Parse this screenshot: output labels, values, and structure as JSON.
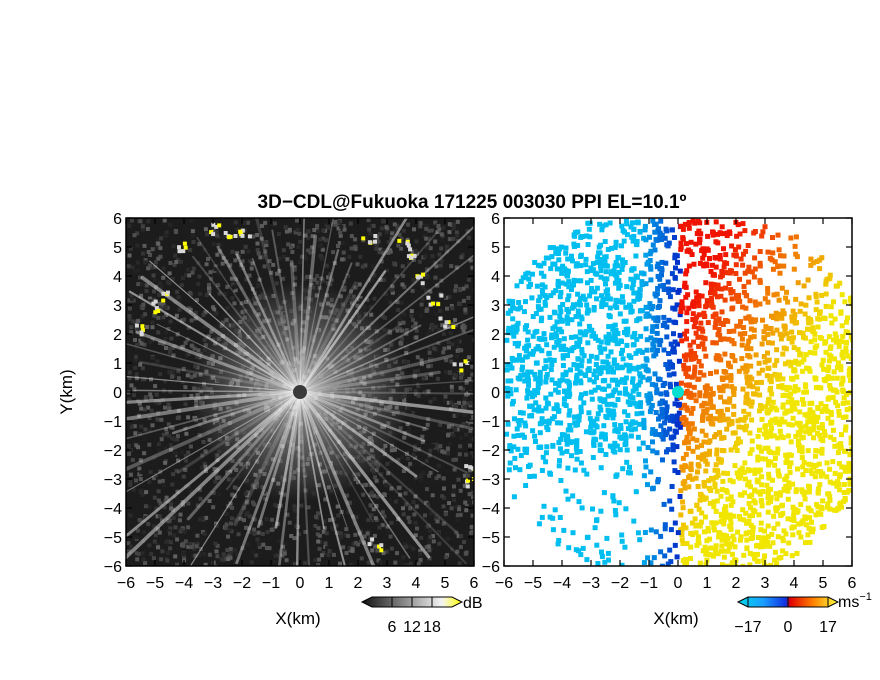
{
  "chart_data": {
    "type": "heatmap",
    "title": "3D−CDL@Fukuoka 171225 003030 PPI EL=10.1º",
    "xlabel": "X(km)",
    "ylabel": "Y(km)",
    "xlim": [
      -6,
      6
    ],
    "ylim": [
      -6,
      6
    ],
    "x_ticks": [
      "−6",
      "−5",
      "−4",
      "−3",
      "−2",
      "−1",
      "0",
      "1",
      "2",
      "3",
      "4",
      "5",
      "6"
    ],
    "y_ticks": [
      "6",
      "5",
      "4",
      "3",
      "2",
      "1",
      "0",
      "−1",
      "−2",
      "−3",
      "−4",
      "−5",
      "−6"
    ],
    "panels": [
      {
        "name": "snr",
        "colorbar": {
          "unit": "dB",
          "ticks": [
            "6",
            "12",
            "18"
          ],
          "range": [
            0,
            24
          ]
        },
        "colors": [
          "#1a1a1a",
          "#ffffff",
          "#ffff00"
        ]
      },
      {
        "name": "doppler-velocity",
        "colorbar": {
          "unit": "ms",
          "unit_sup": "−1",
          "ticks": [
            "−17",
            "0",
            "17"
          ],
          "range": [
            -17,
            17
          ]
        },
        "colors": [
          "#0000cc",
          "#00c8f0",
          "#e80000",
          "#ffe000"
        ]
      }
    ]
  }
}
